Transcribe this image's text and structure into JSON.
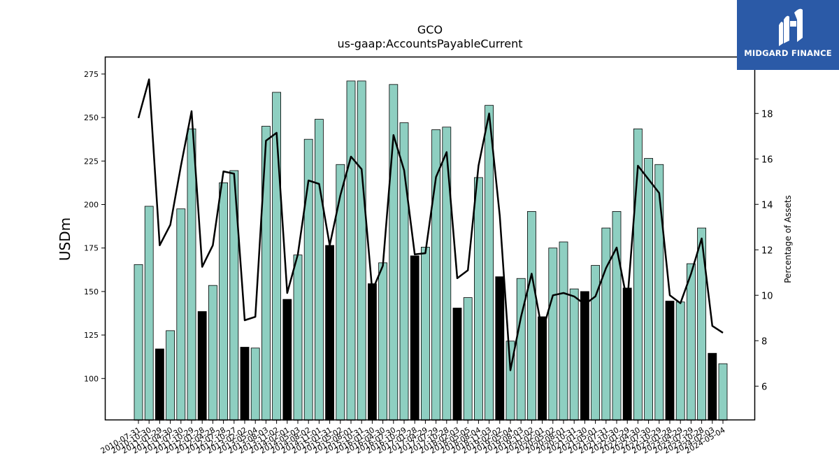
{
  "chart_data": {
    "type": "bar",
    "title": "GCO",
    "subtitle": "us-gaap:AccountsPayableCurrent",
    "ylabel": "USDm",
    "y2label": "Percentage of Assets",
    "ylim": [
      76,
      285
    ],
    "y2lim": [
      4.5,
      20.5
    ],
    "yticks": [
      100,
      125,
      150,
      175,
      200,
      225,
      250,
      275
    ],
    "y2ticks": [
      6,
      8,
      10,
      12,
      14,
      16,
      18
    ],
    "grid": false,
    "bar_colors": {
      "default": "#8ecfc1",
      "highlight": "#000000"
    },
    "line_color": "#000000",
    "categories": [
      "2010-07-31",
      "2010-10-30",
      "2011-01-29",
      "2011-04-30",
      "2011-07-30",
      "2011-10-29",
      "2012-01-28",
      "2012-04-28",
      "2012-07-28",
      "2012-10-27",
      "2013-02-02",
      "2013-05-04",
      "2013-08-03",
      "2013-11-02",
      "2014-02-01",
      "2014-05-03",
      "2014-08-02",
      "2014-11-01",
      "2015-01-31",
      "2015-05-02",
      "2015-08-01",
      "2015-10-31",
      "2016-01-30",
      "2016-04-30",
      "2016-07-30",
      "2016-10-29",
      "2017-01-28",
      "2017-04-29",
      "2017-07-29",
      "2017-10-28",
      "2018-02-03",
      "2018-05-05",
      "2018-08-04",
      "2018-11-03",
      "2019-02-02",
      "2019-05-04",
      "2019-08-03",
      "2019-11-02",
      "2020-02-01",
      "2020-05-02",
      "2020-08-01",
      "2020-10-31",
      "2021-01-30",
      "2021-05-01",
      "2021-07-31",
      "2021-10-30",
      "2022-01-29",
      "2022-04-30",
      "2022-07-30",
      "2022-10-29",
      "2023-01-28",
      "2023-04-29",
      "2023-07-29",
      "2023-10-28",
      "2024-02-03",
      "2024-05-04"
    ],
    "values": [
      165.5,
      199,
      117,
      127.5,
      197.5,
      243.5,
      138.5,
      153.5,
      212.5,
      219.5,
      118,
      117.5,
      245,
      264.5,
      145.5,
      171,
      237.5,
      249,
      176.5,
      223,
      271,
      271,
      154.5,
      166.5,
      269,
      247,
      170.5,
      175.5,
      243,
      244.5,
      140.5,
      146.5,
      215.5,
      257,
      158.5,
      121.5,
      157.5,
      196,
      135.5,
      175,
      178.5,
      151.5,
      150,
      165,
      186.5,
      196,
      152,
      243.5,
      226.5,
      223,
      144.5,
      144,
      166,
      186.5,
      114.5,
      108.5
    ],
    "highlight": [
      false,
      false,
      true,
      false,
      false,
      false,
      true,
      false,
      false,
      false,
      true,
      false,
      false,
      false,
      true,
      false,
      false,
      false,
      true,
      false,
      false,
      false,
      true,
      false,
      false,
      false,
      true,
      false,
      false,
      false,
      true,
      false,
      false,
      false,
      true,
      false,
      false,
      false,
      true,
      false,
      false,
      false,
      true,
      false,
      false,
      false,
      true,
      false,
      false,
      false,
      true,
      false,
      false,
      false,
      true,
      false
    ],
    "line_values": [
      17.8,
      19.5,
      12.2,
      13.1,
      15.7,
      18.1,
      11.25,
      12.2,
      15.45,
      15.35,
      8.9,
      9.05,
      16.8,
      17.15,
      10.1,
      11.8,
      15.05,
      14.9,
      12.2,
      14.4,
      16.1,
      15.55,
      10.2,
      11.3,
      17.05,
      15.5,
      11.8,
      11.85,
      15.2,
      16.3,
      10.75,
      11.1,
      15.7,
      18,
      13.5,
      6.7,
      9.05,
      10.95,
      8.4,
      10.0,
      10.1,
      9.95,
      9.6,
      9.95,
      11.2,
      12.1,
      9.7,
      15.7,
      15.1,
      14.5,
      10.0,
      9.65,
      10.95,
      12.5,
      8.65,
      8.35
    ]
  },
  "logo": {
    "text": "MIDGARD FINANCE"
  }
}
